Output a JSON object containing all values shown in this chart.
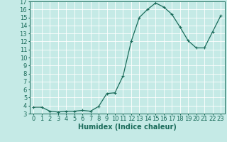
{
  "x": [
    0,
    1,
    2,
    3,
    4,
    5,
    6,
    7,
    8,
    9,
    10,
    11,
    12,
    13,
    14,
    15,
    16,
    17,
    18,
    19,
    20,
    21,
    22,
    23
  ],
  "y": [
    3.8,
    3.8,
    3.3,
    3.2,
    3.3,
    3.3,
    3.4,
    3.3,
    3.9,
    5.5,
    5.6,
    7.7,
    12.0,
    15.0,
    16.0,
    16.8,
    16.3,
    15.4,
    13.8,
    12.1,
    11.2,
    11.2,
    13.2,
    15.2
  ],
  "line_color": "#1a6b5a",
  "marker": "+",
  "marker_size": 3,
  "marker_lw": 0.8,
  "line_width": 0.9,
  "bg_color": "#c5eae6",
  "grid_color": "#ffffff",
  "xlabel": "Humidex (Indice chaleur)",
  "xlabel_fontsize": 7,
  "tick_fontsize": 6,
  "xlim": [
    -0.5,
    23.5
  ],
  "ylim": [
    3,
    17
  ],
  "yticks": [
    3,
    4,
    5,
    6,
    7,
    8,
    9,
    10,
    11,
    12,
    13,
    14,
    15,
    16,
    17
  ],
  "xticks": [
    0,
    1,
    2,
    3,
    4,
    5,
    6,
    7,
    8,
    9,
    10,
    11,
    12,
    13,
    14,
    15,
    16,
    17,
    18,
    19,
    20,
    21,
    22,
    23
  ]
}
